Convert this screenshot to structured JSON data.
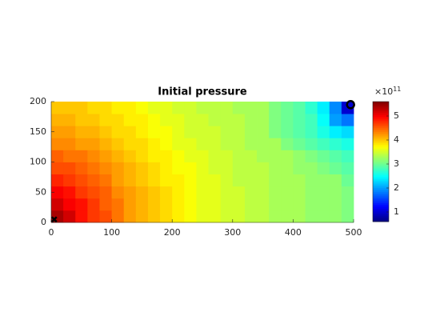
{
  "chart_data": {
    "type": "heatmap",
    "title": "Initial pressure",
    "xlim": [
      0,
      500
    ],
    "ylim": [
      0,
      200
    ],
    "xticks": [
      0,
      100,
      200,
      300,
      400,
      500
    ],
    "yticks": [
      0,
      50,
      100,
      150,
      200
    ],
    "colormap": "jet",
    "clim": [
      0.6,
      5.6
    ],
    "colorbar_ticks": [
      1,
      2,
      3,
      4,
      5
    ],
    "colorbar_multiplier": "×10",
    "colorbar_exponent": "11",
    "values": [
      [
        5.4,
        5.2,
        4.9,
        4.7,
        4.6,
        4.4,
        4.2,
        4.1,
        4.0,
        3.9,
        3.8,
        3.7,
        3.6,
        3.6,
        3.5,
        3.5,
        3.4,
        3.4,
        3.3,
        3.3,
        3.3,
        3.2,
        3.2,
        3.2,
        3.1
      ],
      [
        5.2,
        5.0,
        4.9,
        4.7,
        4.5,
        4.4,
        4.2,
        4.1,
        4.0,
        3.9,
        3.8,
        3.7,
        3.6,
        3.6,
        3.5,
        3.5,
        3.4,
        3.4,
        3.3,
        3.3,
        3.3,
        3.2,
        3.2,
        3.2,
        3.1
      ],
      [
        5.0,
        4.9,
        4.7,
        4.6,
        4.5,
        4.3,
        4.2,
        4.1,
        4.0,
        3.9,
        3.8,
        3.7,
        3.6,
        3.6,
        3.5,
        3.5,
        3.4,
        3.4,
        3.3,
        3.3,
        3.3,
        3.2,
        3.2,
        3.2,
        3.1
      ],
      [
        4.8,
        4.7,
        4.6,
        4.5,
        4.4,
        4.2,
        4.1,
        4.0,
        3.9,
        3.8,
        3.8,
        3.7,
        3.6,
        3.6,
        3.5,
        3.4,
        3.4,
        3.4,
        3.3,
        3.3,
        3.3,
        3.2,
        3.2,
        3.2,
        3.0
      ],
      [
        4.6,
        4.6,
        4.5,
        4.4,
        4.3,
        4.2,
        4.1,
        4.0,
        3.9,
        3.8,
        3.7,
        3.7,
        3.6,
        3.5,
        3.5,
        3.4,
        3.4,
        3.4,
        3.3,
        3.3,
        3.2,
        3.2,
        3.1,
        3.0,
        2.9
      ],
      [
        4.5,
        4.4,
        4.4,
        4.3,
        4.2,
        4.1,
        4.0,
        3.9,
        3.8,
        3.8,
        3.7,
        3.6,
        3.6,
        3.5,
        3.5,
        3.4,
        3.4,
        3.3,
        3.3,
        3.3,
        3.2,
        3.1,
        3.0,
        2.9,
        2.8
      ],
      [
        4.3,
        4.3,
        4.2,
        4.2,
        4.1,
        4.0,
        3.9,
        3.9,
        3.8,
        3.7,
        3.6,
        3.6,
        3.5,
        3.5,
        3.4,
        3.4,
        3.3,
        3.3,
        3.3,
        3.1,
        3.0,
        2.9,
        2.8,
        2.7,
        2.6
      ],
      [
        4.2,
        4.2,
        4.1,
        4.1,
        4.0,
        3.9,
        3.9,
        3.8,
        3.7,
        3.7,
        3.6,
        3.5,
        3.5,
        3.5,
        3.4,
        3.4,
        3.3,
        3.3,
        3.1,
        3.0,
        2.9,
        2.8,
        2.6,
        2.4,
        2.3
      ],
      [
        4.1,
        4.1,
        4.0,
        4.0,
        3.9,
        3.9,
        3.8,
        3.8,
        3.7,
        3.6,
        3.6,
        3.5,
        3.5,
        3.4,
        3.4,
        3.4,
        3.3,
        3.3,
        3.1,
        3.0,
        2.9,
        2.8,
        2.5,
        2.0,
        1.8
      ],
      [
        4.0,
        4.0,
        4.0,
        3.9,
        3.9,
        3.8,
        3.8,
        3.7,
        3.6,
        3.6,
        3.5,
        3.5,
        3.4,
        3.4,
        3.4,
        3.3,
        3.3,
        3.3,
        3.1,
        3.0,
        2.9,
        2.7,
        2.4,
        1.9,
        1.0
      ]
    ],
    "wells": [
      {
        "x": 5,
        "y": 5,
        "marker": "x"
      },
      {
        "x": 495,
        "y": 195,
        "marker": "o"
      }
    ]
  }
}
